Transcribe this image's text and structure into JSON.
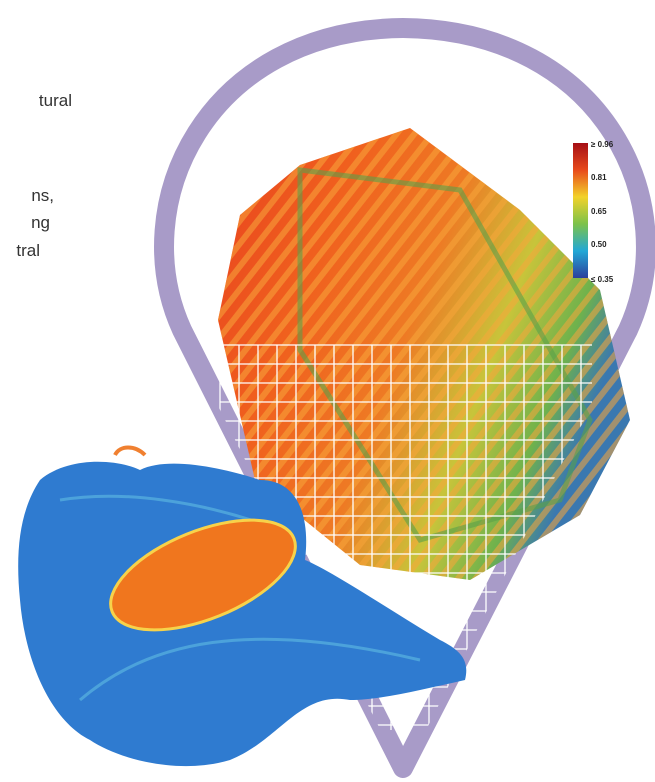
{
  "text_lines": [
    "tural",
    "ns,",
    "ng",
    "tral"
  ],
  "legend": {
    "labels": [
      "≥ 0.96",
      "0.81",
      "0.65",
      "0.50",
      "≤ 0.35"
    ]
  }
}
